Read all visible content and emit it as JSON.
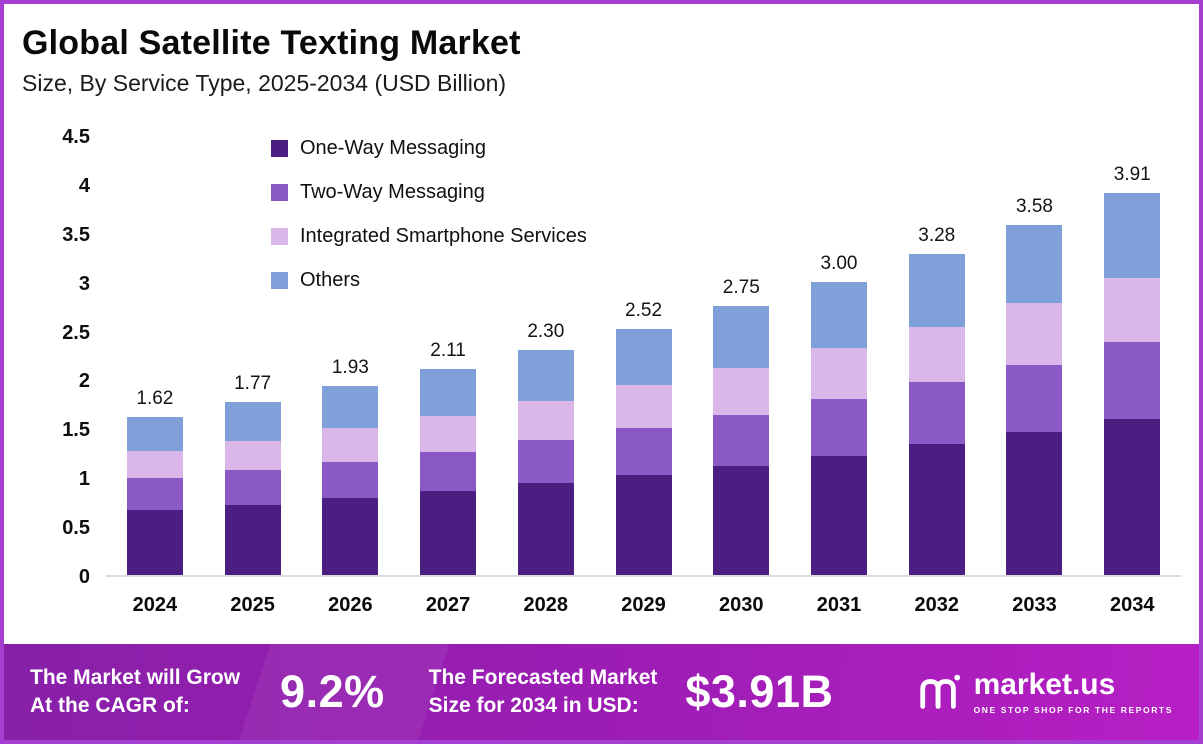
{
  "chart_data": {
    "type": "bar",
    "stacked": true,
    "title": "Global Satellite Texting Market",
    "subtitle": "Size, By Service Type, 2025-2034 (USD Billion)",
    "categories": [
      "2024",
      "2025",
      "2026",
      "2027",
      "2028",
      "2029",
      "2030",
      "2031",
      "2032",
      "2033",
      "2034"
    ],
    "series": [
      {
        "name": "One-Way Messaging",
        "color": "#4B1E82",
        "values": [
          0.66,
          0.72,
          0.79,
          0.86,
          0.94,
          1.02,
          1.11,
          1.22,
          1.34,
          1.46,
          1.6
        ]
      },
      {
        "name": "Two-Way Messaging",
        "color": "#8B59C6",
        "values": [
          0.33,
          0.35,
          0.37,
          0.4,
          0.44,
          0.48,
          0.53,
          0.58,
          0.63,
          0.69,
          0.78
        ]
      },
      {
        "name": "Integrated Smartphone Services",
        "color": "#D9B7E9",
        "values": [
          0.28,
          0.3,
          0.34,
          0.37,
          0.4,
          0.44,
          0.48,
          0.52,
          0.57,
          0.63,
          0.66
        ]
      },
      {
        "name": "Others",
        "color": "#7FA0D8",
        "values": [
          0.35,
          0.4,
          0.43,
          0.48,
          0.52,
          0.58,
          0.63,
          0.68,
          0.74,
          0.8,
          0.87
        ]
      }
    ],
    "total_labels": [
      "1.62",
      "1.77",
      "1.93",
      "2.11",
      "2.30",
      "2.52",
      "2.75",
      "3.00",
      "3.28",
      "3.58",
      "3.91"
    ],
    "totals": [
      1.62,
      1.77,
      1.93,
      2.11,
      2.3,
      2.52,
      2.75,
      3.0,
      3.28,
      3.58,
      3.91
    ],
    "ylim": [
      0,
      4.5
    ],
    "ytick_labels": [
      "0",
      "0.5",
      "1",
      "1.5",
      "2",
      "2.5",
      "3",
      "3.5",
      "4",
      "4.5"
    ],
    "xlabel": "",
    "ylabel": "",
    "grid": false,
    "legend_position": "inside-top-left"
  },
  "footer": {
    "cagr_label_lines": [
      "The Market will Grow",
      "At the CAGR of:"
    ],
    "cagr_value": "9.2%",
    "forecast_label_lines": [
      "The Forecasted Market",
      "Size for 2034 in USD:"
    ],
    "forecast_value": "$3.91B",
    "brand": {
      "name": "market.us",
      "tagline": "ONE STOP SHOP FOR THE REPORTS"
    },
    "gradient": [
      "#8820A8",
      "#B71FC4"
    ]
  },
  "frame": {
    "border_color": "#A53FD1"
  }
}
